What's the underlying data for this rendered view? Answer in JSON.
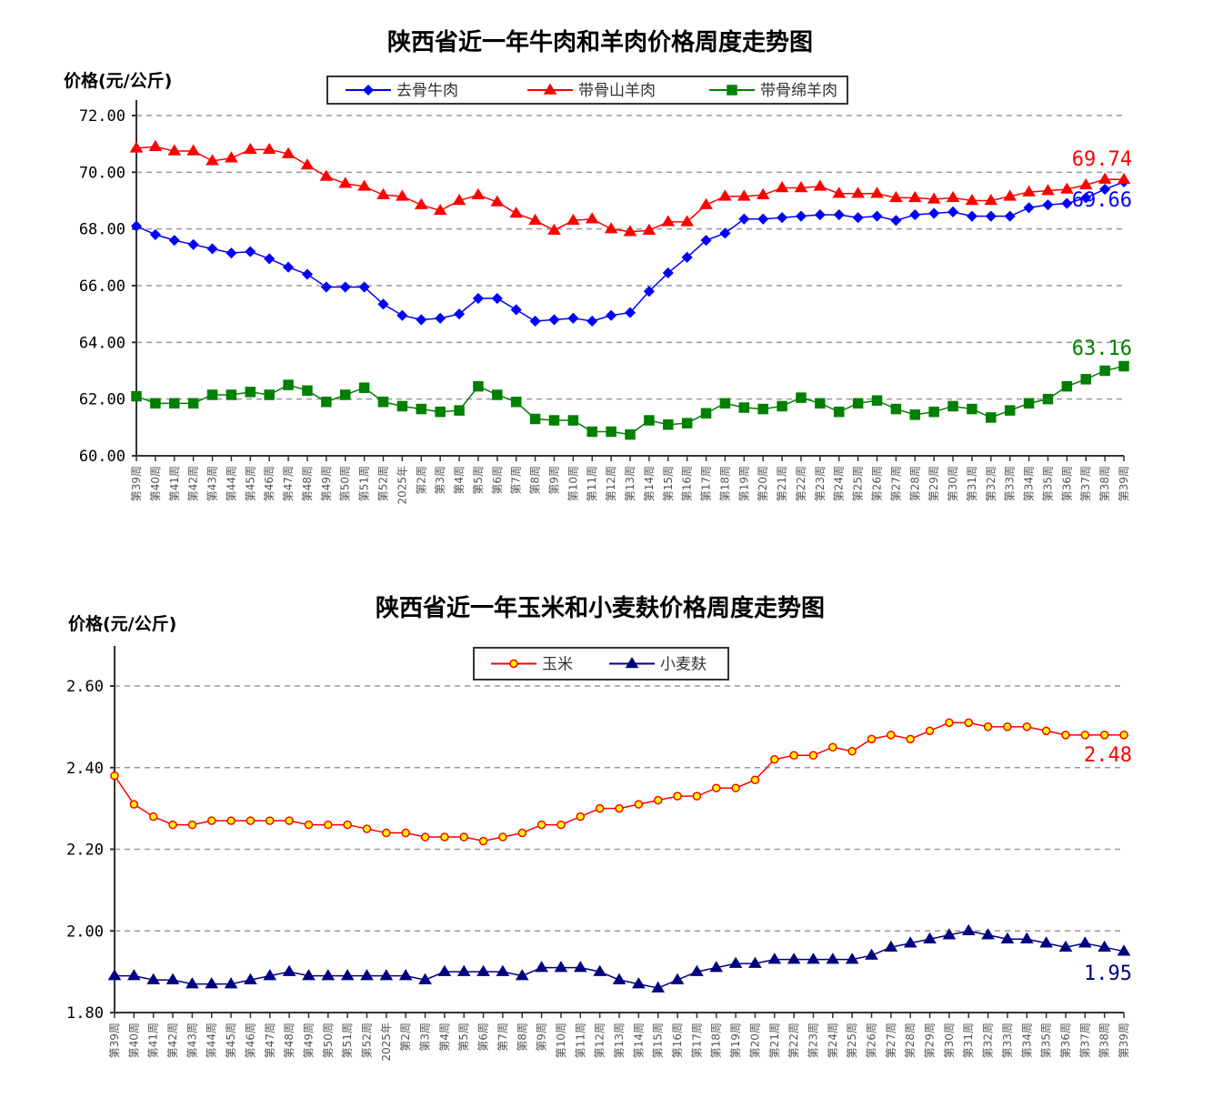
{
  "colors": {
    "beef": "#0000ff",
    "goat": "#ff0000",
    "sheep": "#008000",
    "corn": "#ff0000",
    "corn_fill": "#ffff00",
    "bran": "#000080"
  },
  "x_labels": [
    "第39周",
    "第40周",
    "第41周",
    "第42周",
    "第43周",
    "第44周",
    "第45周",
    "第46周",
    "第47周",
    "第48周",
    "第49周",
    "第50周",
    "第51周",
    "第52周",
    "2025年",
    "第2周",
    "第3周",
    "第4周",
    "第5周",
    "第6周",
    "第7周",
    "第8周",
    "第9周",
    "第10周",
    "第11周",
    "第12周",
    "第13周",
    "第14周",
    "第15周",
    "第16周",
    "第17周",
    "第18周",
    "第19周",
    "第20周",
    "第21周",
    "第22周",
    "第23周",
    "第24周",
    "第25周",
    "第26周",
    "第27周",
    "第28周",
    "第29周",
    "第30周",
    "第31周",
    "第32周",
    "第33周",
    "第34周",
    "第35周",
    "第36周",
    "第37周",
    "第38周",
    "第39周"
  ],
  "chart_data": [
    {
      "type": "line",
      "title": "陕西省近一年牛肉和羊肉价格周度走势图",
      "ylabel": "价格(元/公斤)",
      "xlabel": "",
      "ylim": [
        60,
        72
      ],
      "yticks": [
        "60.00",
        "62.00",
        "64.00",
        "66.00",
        "68.00",
        "70.00",
        "72.00"
      ],
      "grid": true,
      "legend_position": "top-center",
      "series": [
        {
          "name": "去骨牛肉",
          "marker": "diamond",
          "end_label": "69.66",
          "values": [
            68.1,
            67.8,
            67.6,
            67.45,
            67.3,
            67.15,
            67.2,
            66.95,
            66.65,
            66.4,
            65.95,
            65.95,
            65.95,
            65.35,
            64.95,
            64.8,
            64.85,
            65.0,
            65.55,
            65.55,
            65.15,
            64.75,
            64.8,
            64.85,
            64.75,
            64.95,
            65.05,
            65.8,
            66.45,
            67.0,
            67.6,
            67.85,
            68.35,
            68.35,
            68.4,
            68.45,
            68.5,
            68.5,
            68.4,
            68.45,
            68.3,
            68.5,
            68.55,
            68.6,
            68.45,
            68.45,
            68.45,
            68.75,
            68.85,
            68.9,
            69.1,
            69.4,
            69.66
          ]
        },
        {
          "name": "带骨山羊肉",
          "marker": "triangle",
          "end_label": "69.74",
          "values": [
            70.85,
            70.9,
            70.75,
            70.75,
            70.4,
            70.5,
            70.8,
            70.8,
            70.65,
            70.25,
            69.85,
            69.6,
            69.5,
            69.2,
            69.15,
            68.85,
            68.65,
            69.0,
            69.2,
            68.95,
            68.55,
            68.3,
            67.95,
            68.3,
            68.35,
            68.0,
            67.9,
            67.95,
            68.25,
            68.25,
            68.85,
            69.15,
            69.15,
            69.2,
            69.45,
            69.45,
            69.5,
            69.25,
            69.25,
            69.25,
            69.1,
            69.1,
            69.05,
            69.1,
            69.0,
            69.0,
            69.15,
            69.3,
            69.35,
            69.4,
            69.55,
            69.75,
            69.74
          ]
        },
        {
          "name": "带骨绵羊肉",
          "marker": "square",
          "end_label": "63.16",
          "values": [
            62.1,
            61.85,
            61.85,
            61.85,
            62.15,
            62.15,
            62.25,
            62.15,
            62.5,
            62.3,
            61.9,
            62.15,
            62.4,
            61.9,
            61.75,
            61.65,
            61.55,
            61.6,
            62.45,
            62.15,
            61.9,
            61.3,
            61.25,
            61.25,
            60.85,
            60.85,
            60.75,
            61.25,
            61.1,
            61.15,
            61.5,
            61.85,
            61.7,
            61.65,
            61.75,
            62.05,
            61.85,
            61.55,
            61.85,
            61.95,
            61.65,
            61.45,
            61.55,
            61.75,
            61.65,
            61.35,
            61.6,
            61.85,
            62.0,
            62.45,
            62.7,
            63.0,
            63.16
          ]
        }
      ]
    },
    {
      "type": "line",
      "title": "陕西省近一年玉米和小麦麸价格周度走势图",
      "ylabel": "价格(元/公斤)",
      "xlabel": "",
      "ylim": [
        1.8,
        2.6
      ],
      "yticks": [
        "1.80",
        "2.00",
        "2.20",
        "2.40",
        "2.60"
      ],
      "grid": true,
      "legend_position": "top-center",
      "series": [
        {
          "name": "玉米",
          "marker": "circle",
          "end_label": "2.48",
          "values": [
            2.38,
            2.31,
            2.28,
            2.26,
            2.26,
            2.27,
            2.27,
            2.27,
            2.27,
            2.27,
            2.26,
            2.26,
            2.26,
            2.25,
            2.24,
            2.24,
            2.23,
            2.23,
            2.23,
            2.22,
            2.23,
            2.24,
            2.26,
            2.26,
            2.28,
            2.3,
            2.3,
            2.31,
            2.32,
            2.33,
            2.33,
            2.35,
            2.35,
            2.37,
            2.42,
            2.43,
            2.43,
            2.45,
            2.44,
            2.47,
            2.48,
            2.47,
            2.49,
            2.51,
            2.51,
            2.5,
            2.5,
            2.5,
            2.49,
            2.48,
            2.48,
            2.48,
            2.48
          ]
        },
        {
          "name": "小麦麸",
          "marker": "triangle",
          "end_label": "1.95",
          "values": [
            1.89,
            1.89,
            1.88,
            1.88,
            1.87,
            1.87,
            1.87,
            1.88,
            1.89,
            1.9,
            1.89,
            1.89,
            1.89,
            1.89,
            1.89,
            1.89,
            1.88,
            1.9,
            1.9,
            1.9,
            1.9,
            1.89,
            1.91,
            1.91,
            1.91,
            1.9,
            1.88,
            1.87,
            1.86,
            1.88,
            1.9,
            1.91,
            1.92,
            1.92,
            1.93,
            1.93,
            1.93,
            1.93,
            1.93,
            1.94,
            1.96,
            1.97,
            1.98,
            1.99,
            2.0,
            1.99,
            1.98,
            1.98,
            1.97,
            1.96,
            1.97,
            1.96,
            1.95
          ]
        }
      ]
    }
  ]
}
